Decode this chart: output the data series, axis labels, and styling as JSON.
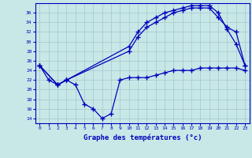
{
  "xlabel": "Graphe des températures (°c)",
  "ylim": [
    13,
    38
  ],
  "xlim": [
    -0.5,
    23.5
  ],
  "yticks": [
    14,
    16,
    18,
    20,
    22,
    24,
    26,
    28,
    30,
    32,
    34,
    36
  ],
  "xticks": [
    0,
    1,
    2,
    3,
    4,
    5,
    6,
    7,
    8,
    9,
    10,
    11,
    12,
    13,
    14,
    15,
    16,
    17,
    18,
    19,
    20,
    21,
    22,
    23
  ],
  "bg_color": "#c8e8e8",
  "grid_color": "#b0d0d0",
  "line_color": "#0000bb",
  "line1_x": [
    0,
    1,
    2,
    3,
    4,
    5,
    6,
    7,
    8,
    9,
    10,
    11,
    12,
    13,
    14,
    15,
    16,
    17,
    18,
    19,
    20,
    21,
    22,
    23
  ],
  "line1_y": [
    25,
    22,
    21,
    22,
    21,
    17,
    16,
    14,
    15,
    22,
    22.5,
    22.5,
    22.5,
    23,
    23.5,
    24,
    24,
    24,
    24.5,
    24.5,
    24.5,
    24.5,
    24.5,
    24
  ],
  "line2_x": [
    0,
    2,
    3,
    10,
    11,
    12,
    13,
    14,
    15,
    16,
    17,
    18,
    19,
    20,
    21,
    22,
    23
  ],
  "line2_y": [
    25,
    21,
    22,
    28,
    31,
    33,
    34,
    35,
    36,
    36.5,
    37,
    37,
    37,
    35,
    33,
    32,
    25
  ],
  "line3_x": [
    0,
    2,
    3,
    10,
    11,
    12,
    13,
    14,
    15,
    16,
    17,
    18,
    19,
    20,
    21,
    22,
    23
  ],
  "line3_y": [
    25,
    21,
    22,
    29,
    32,
    34,
    35,
    36,
    36.5,
    37,
    37.5,
    37.5,
    37.5,
    36,
    32.5,
    29.5,
    25
  ]
}
